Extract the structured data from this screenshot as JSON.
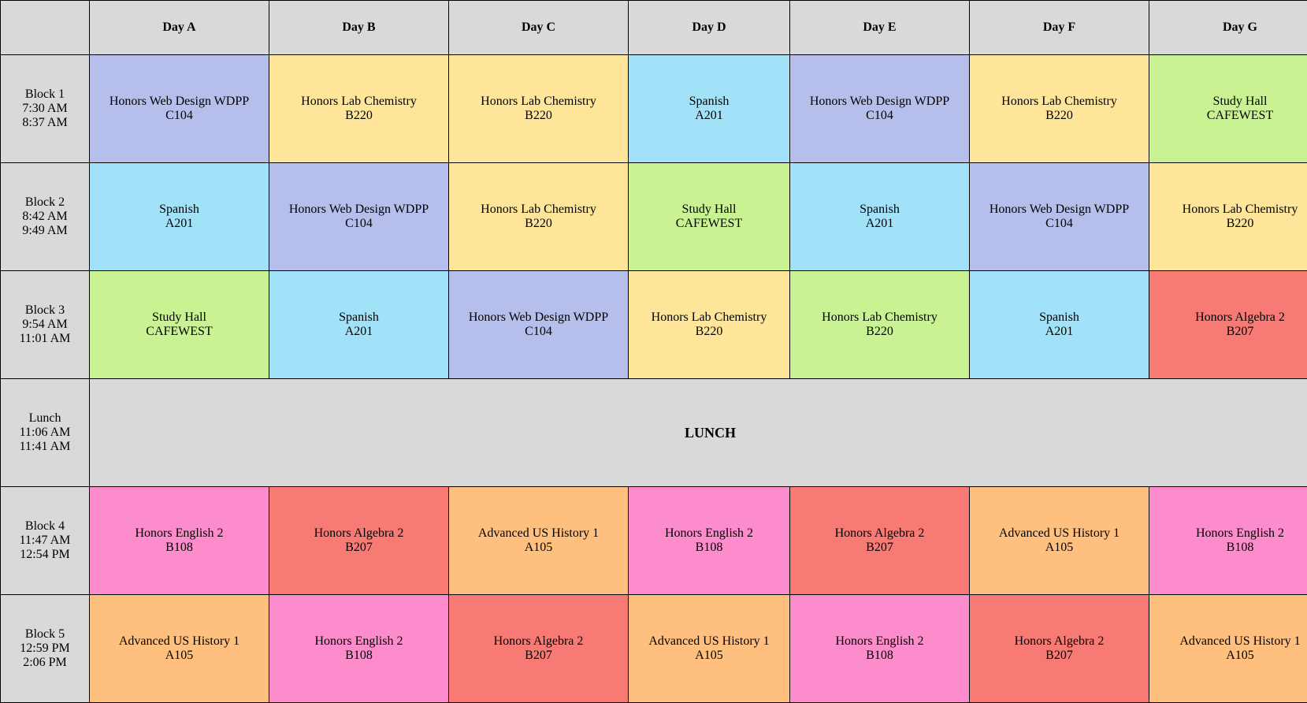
{
  "colors": {
    "Honors Web Design WDPP": "#b6bfeb",
    "Honors Lab Chemistry": "#fee599",
    "Honors Lab Chemistry (green)": "#c9f392",
    "Spanish": "#a1e2f9",
    "Study Hall": "#c9f392",
    "Honors Algebra 2": "#f77a74",
    "Honors English 2": "#fc8ccb",
    "Advanced US History 1": "#ffbf7e",
    "header": "#d9d9d9"
  },
  "days": [
    "Day A",
    "Day B",
    "Day C",
    "Day D",
    "Day E",
    "Day F",
    "Day G"
  ],
  "lunch_label": "LUNCH",
  "blocks": [
    {
      "name": "Block 1",
      "start": "7:30 AM",
      "end": "8:37 AM",
      "classes": [
        {
          "course": "Honors Web Design WDPP",
          "room": "C104",
          "color": "#b6bfeb"
        },
        {
          "course": "Honors Lab Chemistry",
          "room": "B220",
          "color": "#fee599"
        },
        {
          "course": "Honors Lab Chemistry",
          "room": "B220",
          "color": "#fee599"
        },
        {
          "course": "Spanish",
          "room": "A201",
          "color": "#a1e2f9"
        },
        {
          "course": "Honors Web Design WDPP",
          "room": "C104",
          "color": "#b6bfeb"
        },
        {
          "course": "Honors Lab Chemistry",
          "room": "B220",
          "color": "#fee599"
        },
        {
          "course": "Study Hall",
          "room": "CAFEWEST",
          "color": "#c9f392"
        }
      ]
    },
    {
      "name": "Block 2",
      "start": "8:42 AM",
      "end": "9:49 AM",
      "classes": [
        {
          "course": "Spanish",
          "room": "A201",
          "color": "#a1e2f9"
        },
        {
          "course": "Honors Web Design WDPP",
          "room": "C104",
          "color": "#b6bfeb"
        },
        {
          "course": "Honors Lab Chemistry",
          "room": "B220",
          "color": "#fee599"
        },
        {
          "course": "Study Hall",
          "room": "CAFEWEST",
          "color": "#c9f392"
        },
        {
          "course": "Spanish",
          "room": "A201",
          "color": "#a1e2f9"
        },
        {
          "course": "Honors Web Design WDPP",
          "room": "C104",
          "color": "#b6bfeb"
        },
        {
          "course": "Honors Lab Chemistry",
          "room": "B220",
          "color": "#fee599"
        }
      ]
    },
    {
      "name": "Block 3",
      "start": "9:54 AM",
      "end": "11:01 AM",
      "classes": [
        {
          "course": "Study Hall",
          "room": "CAFEWEST",
          "color": "#c9f392"
        },
        {
          "course": "Spanish",
          "room": "A201",
          "color": "#a1e2f9"
        },
        {
          "course": "Honors Web Design WDPP",
          "room": "C104",
          "color": "#b6bfeb"
        },
        {
          "course": "Honors Lab Chemistry",
          "room": "B220",
          "color": "#fee599"
        },
        {
          "course": "Honors Lab Chemistry",
          "room": "B220",
          "color": "#c9f392"
        },
        {
          "course": "Spanish",
          "room": "A201",
          "color": "#a1e2f9"
        },
        {
          "course": "Honors Algebra 2",
          "room": "B207",
          "color": "#f77a74"
        }
      ]
    },
    {
      "name": "Lunch",
      "start": "11:06 AM",
      "end": "11:41 AM",
      "is_lunch": true
    },
    {
      "name": "Block 4",
      "start": "11:47 AM",
      "end": "12:54 PM",
      "classes": [
        {
          "course": "Honors English 2",
          "room": "B108",
          "color": "#fc8ccb"
        },
        {
          "course": "Honors Algebra 2",
          "room": "B207",
          "color": "#f77a74"
        },
        {
          "course": "Advanced US History 1",
          "room": "A105",
          "color": "#ffbf7e"
        },
        {
          "course": "Honors English 2",
          "room": "B108",
          "color": "#fc8ccb"
        },
        {
          "course": "Honors Algebra 2",
          "room": "B207",
          "color": "#f77a74"
        },
        {
          "course": "Advanced US History 1",
          "room": "A105",
          "color": "#ffbf7e"
        },
        {
          "course": "Honors English 2",
          "room": "B108",
          "color": "#fc8ccb"
        }
      ]
    },
    {
      "name": "Block 5",
      "start": "12:59 PM",
      "end": "2:06 PM",
      "classes": [
        {
          "course": "Advanced US History 1",
          "room": "A105",
          "color": "#ffbf7e"
        },
        {
          "course": "Honors English 2",
          "room": "B108",
          "color": "#fc8ccb"
        },
        {
          "course": "Honors Algebra 2",
          "room": "B207",
          "color": "#f77a74"
        },
        {
          "course": "Advanced US History 1",
          "room": "A105",
          "color": "#ffbf7e"
        },
        {
          "course": "Honors English 2",
          "room": "B108",
          "color": "#fc8ccb"
        },
        {
          "course": "Honors Algebra 2",
          "room": "B207",
          "color": "#f77a74"
        },
        {
          "course": "Advanced US History 1",
          "room": "A105",
          "color": "#ffbf7e"
        }
      ]
    }
  ]
}
